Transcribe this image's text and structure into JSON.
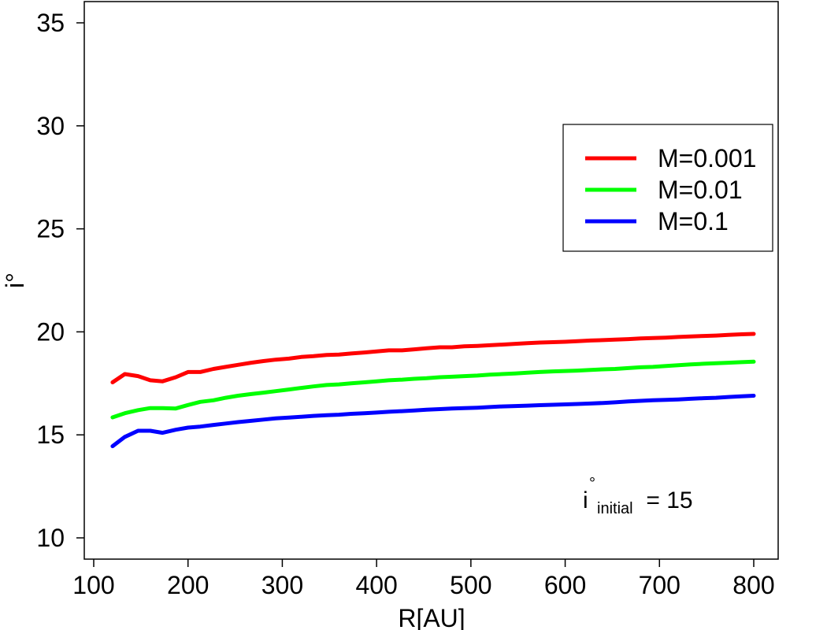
{
  "chart_data": {
    "type": "line",
    "title": "",
    "xlabel": "R[AU]",
    "ylabel": "i°",
    "xlim": [
      100,
      800
    ],
    "ylim": [
      10,
      35
    ],
    "x_ticks": [
      100,
      200,
      300,
      400,
      500,
      600,
      700,
      800
    ],
    "y_ticks": [
      10,
      15,
      20,
      25,
      30,
      35
    ],
    "x_tick_labels": [
      "100",
      "200",
      "300",
      "400",
      "500",
      "600",
      "700",
      "800"
    ],
    "y_tick_labels": [
      "10",
      "15",
      "20",
      "25",
      "30",
      "35"
    ],
    "grid": false,
    "legend_position": "top-right",
    "annotation": {
      "base": "i",
      "superscript": "°",
      "subscript": "initial",
      "text": " = 15"
    },
    "x": [
      120,
      133,
      147,
      160,
      173,
      187,
      200,
      213,
      227,
      240,
      253,
      267,
      280,
      293,
      307,
      320,
      333,
      347,
      360,
      373,
      387,
      400,
      413,
      427,
      440,
      453,
      467,
      480,
      493,
      507,
      520,
      533,
      547,
      560,
      573,
      587,
      600,
      613,
      627,
      640,
      653,
      667,
      680,
      693,
      707,
      720,
      733,
      747,
      760,
      773,
      787,
      800
    ],
    "series": [
      {
        "name": "M=0.001",
        "color": "#ff0000",
        "values": [
          17.55,
          17.95,
          17.85,
          17.65,
          17.6,
          17.8,
          18.05,
          18.05,
          18.2,
          18.3,
          18.4,
          18.5,
          18.58,
          18.65,
          18.7,
          18.78,
          18.82,
          18.88,
          18.9,
          18.95,
          19.0,
          19.05,
          19.1,
          19.1,
          19.15,
          19.2,
          19.25,
          19.25,
          19.3,
          19.32,
          19.35,
          19.38,
          19.42,
          19.45,
          19.48,
          19.5,
          19.52,
          19.55,
          19.58,
          19.6,
          19.62,
          19.65,
          19.68,
          19.7,
          19.72,
          19.75,
          19.78,
          19.8,
          19.82,
          19.85,
          19.88,
          19.9
        ]
      },
      {
        "name": "M=0.01",
        "color": "#00ff00",
        "values": [
          15.85,
          16.05,
          16.2,
          16.3,
          16.3,
          16.28,
          16.45,
          16.6,
          16.68,
          16.8,
          16.9,
          16.98,
          17.05,
          17.12,
          17.2,
          17.28,
          17.35,
          17.42,
          17.45,
          17.5,
          17.55,
          17.6,
          17.65,
          17.68,
          17.72,
          17.75,
          17.8,
          17.82,
          17.85,
          17.88,
          17.92,
          17.95,
          17.98,
          18.02,
          18.05,
          18.08,
          18.1,
          18.12,
          18.15,
          18.18,
          18.2,
          18.24,
          18.28,
          18.3,
          18.34,
          18.38,
          18.42,
          18.45,
          18.48,
          18.5,
          18.53,
          18.55
        ]
      },
      {
        "name": "M=0.1",
        "color": "#0000ff",
        "values": [
          14.45,
          14.9,
          15.2,
          15.2,
          15.1,
          15.25,
          15.35,
          15.4,
          15.48,
          15.55,
          15.62,
          15.68,
          15.74,
          15.8,
          15.84,
          15.88,
          15.92,
          15.95,
          15.98,
          16.02,
          16.05,
          16.08,
          16.12,
          16.15,
          16.18,
          16.22,
          16.25,
          16.28,
          16.3,
          16.32,
          16.35,
          16.38,
          16.4,
          16.42,
          16.44,
          16.46,
          16.48,
          16.5,
          16.52,
          16.55,
          16.58,
          16.62,
          16.65,
          16.68,
          16.7,
          16.72,
          16.75,
          16.78,
          16.8,
          16.84,
          16.87,
          16.9
        ]
      }
    ]
  }
}
